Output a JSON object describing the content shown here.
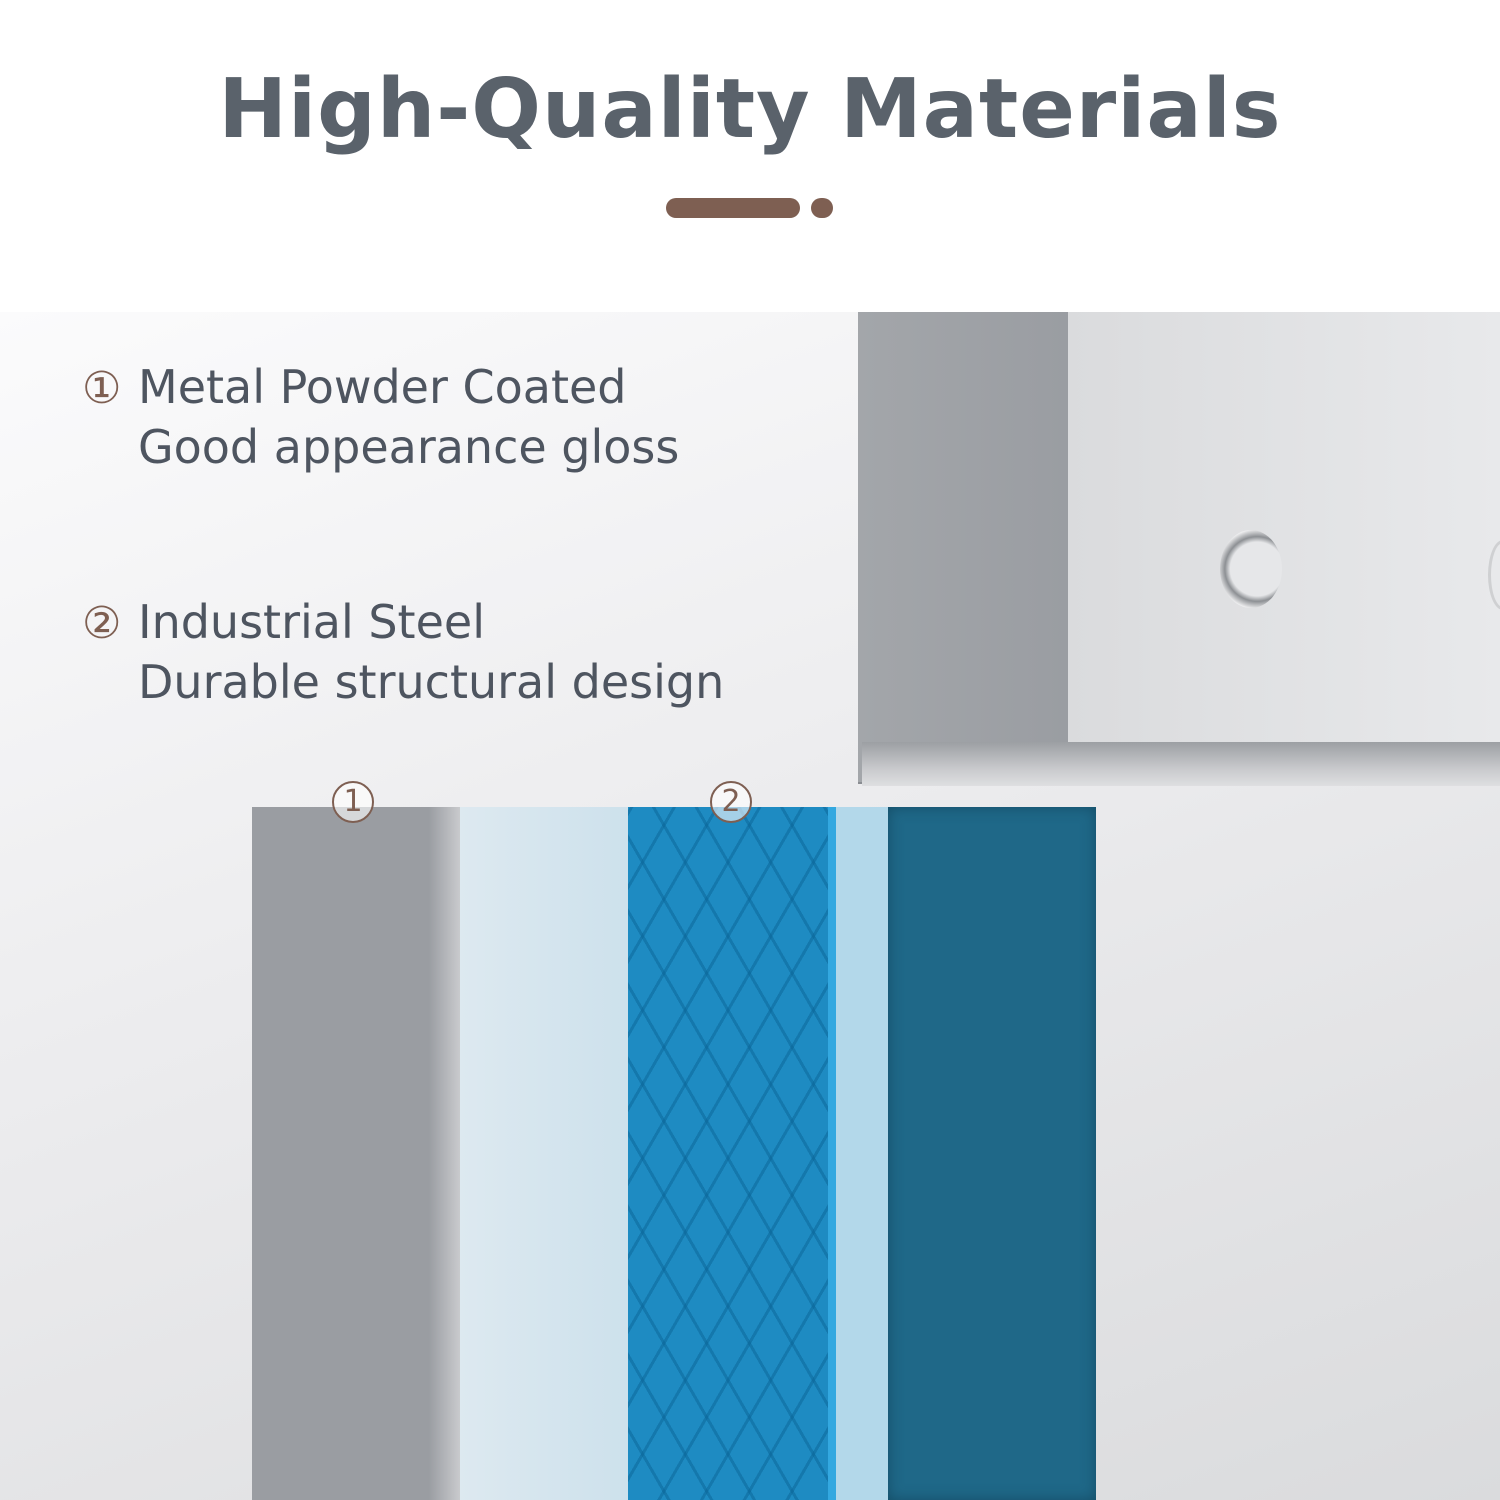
{
  "title": "High-Quality Materials",
  "features": [
    {
      "number": "①",
      "heading": "Metal Powder Coated",
      "description": "Good appearance gloss"
    },
    {
      "number": "②",
      "heading": "Industrial Steel",
      "description": "Durable structural design"
    }
  ],
  "layer_tags": [
    "1",
    "2"
  ],
  "colors": {
    "title": "#5a626b",
    "accent": "#7e5f52",
    "steel_blue": "#1e8bc2",
    "dark_blue": "#1f6888"
  }
}
